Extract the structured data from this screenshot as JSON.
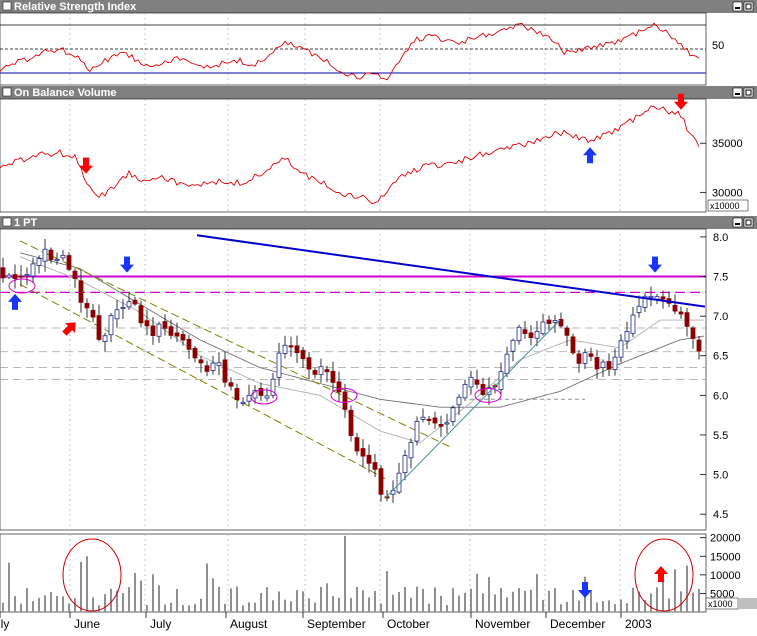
{
  "panels": {
    "rsi": {
      "title": "Relative Strength Index",
      "tick_label": "50"
    },
    "obv": {
      "title": "On Balance Volume",
      "tick_labels": [
        "35000",
        "30000"
      ],
      "multiplier": "x10000"
    },
    "price": {
      "title": "1 PT",
      "tick_labels": [
        "8.0",
        "7.5",
        "7.0",
        "6.5",
        "6.0",
        "5.5",
        "5.0",
        "4.5"
      ]
    },
    "volume": {
      "tick_labels": [
        "20000",
        "15000",
        "10000",
        "5000"
      ],
      "multiplier": "x1000"
    }
  },
  "window_buttons": [
    "minimize-icon",
    "maximize-icon"
  ],
  "colors": {
    "panel_title_bg": "#808080",
    "rsi_line": "#e00000",
    "obv_line": "#e00000",
    "up_candle": "#1c2a8c",
    "down_candle": "#8b0000",
    "trendline": "#0000cc",
    "resistance": "#d000d0",
    "channel": "#808000",
    "ma_line": "#808080",
    "volume_bar": "#909090",
    "arrow_red": "#ff0000",
    "arrow_blue": "#1a33ff"
  },
  "chart_data": {
    "type": "candlestick",
    "x_axis": {
      "labels": [
        "July",
        "June",
        "July",
        "August",
        "September",
        "October",
        "November",
        "December",
        "2003"
      ]
    },
    "price": {
      "ylim": [
        4.3,
        8.1
      ],
      "yticks": [
        8.0,
        7.5,
        7.0,
        6.5,
        6.0,
        5.5,
        5.0,
        4.5
      ],
      "points": [
        [
          0,
          7.6
        ],
        [
          5,
          7.4
        ],
        [
          10,
          7.5
        ],
        [
          16,
          7.4
        ],
        [
          22,
          7.5
        ],
        [
          28,
          7.6
        ],
        [
          34,
          7.7
        ],
        [
          40,
          7.75
        ],
        [
          46,
          7.8
        ],
        [
          52,
          7.7
        ],
        [
          58,
          7.75
        ],
        [
          64,
          7.7
        ],
        [
          70,
          7.6
        ],
        [
          76,
          7.4
        ],
        [
          82,
          7.2
        ],
        [
          88,
          7.15
        ],
        [
          94,
          7.0
        ],
        [
          100,
          6.65
        ],
        [
          106,
          6.8
        ],
        [
          112,
          7.0
        ],
        [
          118,
          7.1
        ],
        [
          124,
          7.15
        ],
        [
          130,
          7.25
        ],
        [
          136,
          7.1
        ],
        [
          142,
          6.95
        ],
        [
          148,
          6.85
        ],
        [
          154,
          6.8
        ],
        [
          160,
          6.85
        ],
        [
          166,
          6.8
        ],
        [
          172,
          6.75
        ],
        [
          178,
          6.8
        ],
        [
          184,
          6.7
        ],
        [
          190,
          6.6
        ],
        [
          196,
          6.45
        ],
        [
          202,
          6.35
        ],
        [
          208,
          6.3
        ],
        [
          214,
          6.4
        ],
        [
          220,
          6.35
        ],
        [
          226,
          6.2
        ],
        [
          232,
          6.1
        ],
        [
          238,
          5.95
        ],
        [
          244,
          5.85
        ],
        [
          250,
          6.1
        ],
        [
          256,
          6.05
        ],
        [
          262,
          6.0
        ],
        [
          268,
          6.05
        ],
        [
          274,
          6.3
        ],
        [
          280,
          6.6
        ],
        [
          286,
          6.65
        ],
        [
          292,
          6.55
        ],
        [
          298,
          6.6
        ],
        [
          304,
          6.45
        ],
        [
          310,
          6.35
        ],
        [
          316,
          6.3
        ],
        [
          322,
          6.35
        ],
        [
          328,
          6.3
        ],
        [
          334,
          6.2
        ],
        [
          340,
          6.0
        ],
        [
          346,
          5.85
        ],
        [
          350,
          5.6
        ],
        [
          356,
          5.3
        ],
        [
          362,
          5.3
        ],
        [
          368,
          5.15
        ],
        [
          374,
          5.1
        ],
        [
          380,
          4.75
        ],
        [
          386,
          4.65
        ],
        [
          392,
          4.8
        ],
        [
          398,
          5.0
        ],
        [
          404,
          5.2
        ],
        [
          410,
          5.4
        ],
        [
          416,
          5.65
        ],
        [
          422,
          5.75
        ],
        [
          428,
          5.7
        ],
        [
          434,
          5.6
        ],
        [
          440,
          5.55
        ],
        [
          446,
          5.65
        ],
        [
          452,
          5.8
        ],
        [
          458,
          5.95
        ],
        [
          464,
          6.1
        ],
        [
          470,
          6.2
        ],
        [
          476,
          6.1
        ],
        [
          482,
          6.0
        ],
        [
          488,
          6.05
        ],
        [
          494,
          6.1
        ],
        [
          500,
          6.3
        ],
        [
          506,
          6.5
        ],
        [
          512,
          6.7
        ],
        [
          518,
          6.8
        ],
        [
          524,
          6.85
        ],
        [
          530,
          6.75
        ],
        [
          536,
          6.85
        ],
        [
          542,
          6.9
        ],
        [
          548,
          6.95
        ],
        [
          554,
          7.0
        ],
        [
          560,
          6.95
        ],
        [
          566,
          6.8
        ],
        [
          572,
          6.6
        ],
        [
          578,
          6.45
        ],
        [
          584,
          6.5
        ],
        [
          590,
          6.45
        ],
        [
          596,
          6.35
        ],
        [
          602,
          6.4
        ],
        [
          608,
          6.3
        ],
        [
          614,
          6.4
        ],
        [
          620,
          6.6
        ],
        [
          626,
          6.8
        ],
        [
          632,
          7.0
        ],
        [
          638,
          7.1
        ],
        [
          644,
          7.2
        ],
        [
          650,
          7.25
        ],
        [
          656,
          7.22
        ],
        [
          662,
          7.2
        ],
        [
          668,
          7.15
        ],
        [
          674,
          7.05
        ],
        [
          680,
          7.0
        ],
        [
          686,
          6.95
        ],
        [
          692,
          6.75
        ],
        [
          698,
          6.55
        ],
        [
          703,
          6.5
        ]
      ],
      "horizontal_levels": [
        {
          "value": 7.5,
          "style": "solid",
          "color": "resistance"
        },
        {
          "value": 7.3,
          "style": "dashed",
          "color": "resistance"
        },
        {
          "value": 6.85,
          "style": "dashed",
          "color": "gray"
        },
        {
          "value": 6.55,
          "style": "dashed",
          "color": "gray"
        },
        {
          "value": 6.35,
          "style": "dashed",
          "color": "gray"
        },
        {
          "value": 6.2,
          "style": "dashed",
          "color": "gray"
        }
      ],
      "trendline": [
        [
          197,
          8.02
        ],
        [
          705,
          7.12
        ]
      ],
      "channel_upper": [
        [
          20,
          7.95
        ],
        [
          450,
          5.35
        ]
      ],
      "channel_lower": [
        [
          20,
          7.4
        ],
        [
          385,
          4.95
        ]
      ],
      "ma_slow": [
        [
          20,
          7.8
        ],
        [
          80,
          7.6
        ],
        [
          140,
          7.15
        ],
        [
          200,
          6.7
        ],
        [
          260,
          6.35
        ],
        [
          320,
          6.15
        ],
        [
          380,
          5.95
        ],
        [
          440,
          5.85
        ],
        [
          500,
          5.85
        ],
        [
          560,
          6.05
        ],
        [
          620,
          6.4
        ],
        [
          680,
          6.7
        ],
        [
          705,
          6.75
        ]
      ],
      "ma_fast": [
        [
          20,
          7.75
        ],
        [
          80,
          7.45
        ],
        [
          140,
          7.05
        ],
        [
          200,
          6.5
        ],
        [
          260,
          6.15
        ],
        [
          320,
          6.0
        ],
        [
          380,
          5.55
        ],
        [
          420,
          5.4
        ],
        [
          470,
          5.9
        ],
        [
          520,
          6.45
        ],
        [
          570,
          6.7
        ],
        [
          620,
          6.6
        ],
        [
          660,
          6.95
        ],
        [
          705,
          6.95
        ]
      ],
      "support_lines": [
        {
          "from": [
            385,
            4.7
          ],
          "to": [
            560,
            6.95
          ],
          "color": "#3a9090"
        },
        {
          "from": [
            470,
            5.95
          ],
          "to": [
            585,
            5.95
          ],
          "color": "gray",
          "style": "dashed"
        }
      ],
      "ellipses": [
        {
          "x": 22,
          "y": 7.38
        },
        {
          "x": 264,
          "y": 5.98
        },
        {
          "x": 344,
          "y": 6.0
        },
        {
          "x": 488,
          "y": 6.0
        }
      ],
      "annotations": [
        {
          "type": "arrow-up",
          "x": 15,
          "y": 7.18,
          "color": "arrow_blue"
        },
        {
          "type": "arrow-down",
          "x": 127,
          "y": 7.55,
          "color": "arrow_blue"
        },
        {
          "type": "arrow-diag",
          "x": 70,
          "y": 6.85,
          "color": "arrow_red"
        },
        {
          "type": "arrow-down",
          "x": 655,
          "y": 7.55,
          "color": "arrow_blue"
        }
      ]
    },
    "rsi": {
      "ylim": [
        20,
        80
      ],
      "levels": [
        70,
        50,
        30
      ],
      "points": [
        [
          0,
          33
        ],
        [
          15,
          38
        ],
        [
          30,
          42
        ],
        [
          45,
          48
        ],
        [
          60,
          50
        ],
        [
          75,
          44
        ],
        [
          90,
          33
        ],
        [
          105,
          40
        ],
        [
          120,
          48
        ],
        [
          135,
          42
        ],
        [
          150,
          36
        ],
        [
          165,
          40
        ],
        [
          180,
          42
        ],
        [
          195,
          36
        ],
        [
          210,
          36
        ],
        [
          225,
          38
        ],
        [
          240,
          40
        ],
        [
          255,
          36
        ],
        [
          270,
          46
        ],
        [
          285,
          55
        ],
        [
          300,
          52
        ],
        [
          315,
          44
        ],
        [
          330,
          38
        ],
        [
          345,
          30
        ],
        [
          360,
          26
        ],
        [
          375,
          30
        ],
        [
          385,
          24
        ],
        [
          400,
          40
        ],
        [
          415,
          58
        ],
        [
          430,
          60
        ],
        [
          445,
          58
        ],
        [
          460,
          55
        ],
        [
          475,
          60
        ],
        [
          490,
          62
        ],
        [
          505,
          65
        ],
        [
          520,
          70
        ],
        [
          535,
          66
        ],
        [
          550,
          60
        ],
        [
          565,
          46
        ],
        [
          580,
          50
        ],
        [
          595,
          52
        ],
        [
          610,
          54
        ],
        [
          625,
          58
        ],
        [
          640,
          64
        ],
        [
          655,
          70
        ],
        [
          670,
          62
        ],
        [
          685,
          50
        ],
        [
          700,
          40
        ]
      ]
    },
    "obv": {
      "ylim": [
        28000,
        39500
      ],
      "yticks": [
        35000,
        30000
      ],
      "points": [
        [
          0,
          32500
        ],
        [
          20,
          33200
        ],
        [
          40,
          33900
        ],
        [
          60,
          34000
        ],
        [
          75,
          33500
        ],
        [
          90,
          30500
        ],
        [
          100,
          29500
        ],
        [
          115,
          30800
        ],
        [
          130,
          32000
        ],
        [
          145,
          31200
        ],
        [
          160,
          31800
        ],
        [
          175,
          31000
        ],
        [
          190,
          30500
        ],
        [
          210,
          31200
        ],
        [
          230,
          30800
        ],
        [
          250,
          31200
        ],
        [
          270,
          32500
        ],
        [
          285,
          33500
        ],
        [
          300,
          32000
        ],
        [
          315,
          31200
        ],
        [
          330,
          30600
        ],
        [
          345,
          29800
        ],
        [
          360,
          29500
        ],
        [
          375,
          28800
        ],
        [
          385,
          30000
        ],
        [
          400,
          31500
        ],
        [
          420,
          32500
        ],
        [
          440,
          32800
        ],
        [
          460,
          33200
        ],
        [
          480,
          33800
        ],
        [
          500,
          34200
        ],
        [
          520,
          34800
        ],
        [
          540,
          35500
        ],
        [
          560,
          36000
        ],
        [
          575,
          35800
        ],
        [
          590,
          35200
        ],
        [
          605,
          35800
        ],
        [
          620,
          36500
        ],
        [
          640,
          37800
        ],
        [
          655,
          38800
        ],
        [
          670,
          38200
        ],
        [
          680,
          38000
        ],
        [
          690,
          36000
        ],
        [
          700,
          34500
        ]
      ],
      "annotations": [
        {
          "type": "arrow-down",
          "x": 86,
          "color": "arrow_red"
        },
        {
          "type": "arrow-up",
          "x": 590,
          "color": "arrow_blue"
        },
        {
          "type": "arrow-down",
          "x": 681,
          "color": "arrow_red"
        }
      ]
    },
    "volume": {
      "ylim": [
        0,
        21000
      ],
      "yticks": [
        20000,
        15000,
        10000,
        5000
      ],
      "bar_count": 117,
      "ellipses": [
        {
          "x": 92
        },
        {
          "x": 664
        }
      ],
      "annotations": [
        {
          "type": "arrow-down",
          "x": 585,
          "color": "arrow_blue"
        },
        {
          "type": "arrow-up",
          "x": 661,
          "color": "arrow_red"
        }
      ]
    }
  }
}
